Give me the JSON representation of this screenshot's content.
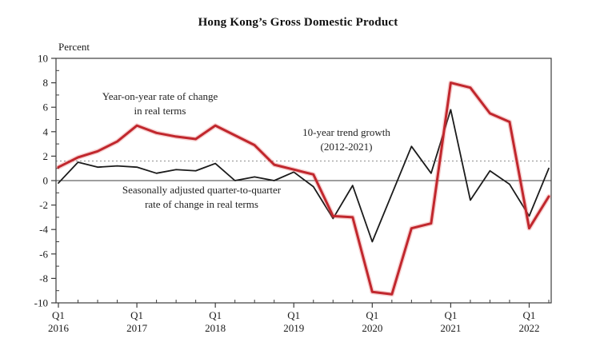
{
  "title": "Hong Kong’s Gross Domestic Product",
  "axis": {
    "unit_label": "Percent"
  },
  "annotations": {
    "yoy": {
      "line1": "Year-on-year rate of change",
      "line2": "in real terms"
    },
    "seasonal": {
      "line1": "Seasonally adjusted quarter-to-quarter",
      "line2": "rate of change in real terms"
    },
    "trend": {
      "line1": "10-year trend growth",
      "line2": "(2012-2021)"
    }
  },
  "chart_data": {
    "type": "line",
    "x": [
      "2016 Q1",
      "2016 Q2",
      "2016 Q3",
      "2016 Q4",
      "2017 Q1",
      "2017 Q2",
      "2017 Q3",
      "2017 Q4",
      "2018 Q1",
      "2018 Q2",
      "2018 Q3",
      "2018 Q4",
      "2019 Q1",
      "2019 Q2",
      "2019 Q3",
      "2019 Q4",
      "2020 Q1",
      "2020 Q2",
      "2020 Q3",
      "2020 Q4",
      "2021 Q1",
      "2021 Q2",
      "2021 Q3",
      "2021 Q4",
      "2022 Q1",
      "2022 Q2"
    ],
    "x_major_tick_positions": [
      0,
      4,
      8,
      12,
      16,
      20,
      24
    ],
    "x_major_tick_labels": [
      [
        "Q1",
        "2016"
      ],
      [
        "Q1",
        "2017"
      ],
      [
        "Q1",
        "2018"
      ],
      [
        "Q1",
        "2019"
      ],
      [
        "Q1",
        "2020"
      ],
      [
        "Q1",
        "2021"
      ],
      [
        "Q1",
        "2022"
      ]
    ],
    "y_ticks": [
      10,
      8,
      6,
      4,
      2,
      0,
      -2,
      -4,
      -6,
      -8,
      -10
    ],
    "ylim": [
      -10,
      10
    ],
    "ylabel": "Percent",
    "grid": false,
    "series": [
      {
        "name": "Year-on-year rate of change in real terms",
        "color": "#c1272d",
        "width": 3,
        "values": [
          1.1,
          1.9,
          2.4,
          3.2,
          4.5,
          3.9,
          3.6,
          3.4,
          4.5,
          3.7,
          2.9,
          1.3,
          0.9,
          0.5,
          -2.9,
          -3.0,
          -9.1,
          -9.3,
          -3.9,
          -3.5,
          8.0,
          7.6,
          5.5,
          4.8,
          -3.9,
          -1.3
        ]
      },
      {
        "name": "Seasonally adjusted quarter-to-quarter rate of change in real terms",
        "color": "#1b1b1b",
        "width": 1.8,
        "values": [
          -0.2,
          1.5,
          1.1,
          1.2,
          1.1,
          0.6,
          0.9,
          0.8,
          1.4,
          0.0,
          0.3,
          0.0,
          0.7,
          -0.5,
          -3.1,
          -0.4,
          -5.0,
          -1.1,
          2.8,
          0.6,
          5.8,
          -1.6,
          0.8,
          -0.3,
          -2.9,
          1.0
        ]
      }
    ],
    "trend_line": {
      "name": "10-year trend growth (2012-2021)",
      "value": 1.6,
      "color": "#8f8f8f",
      "style": "dotted"
    }
  }
}
